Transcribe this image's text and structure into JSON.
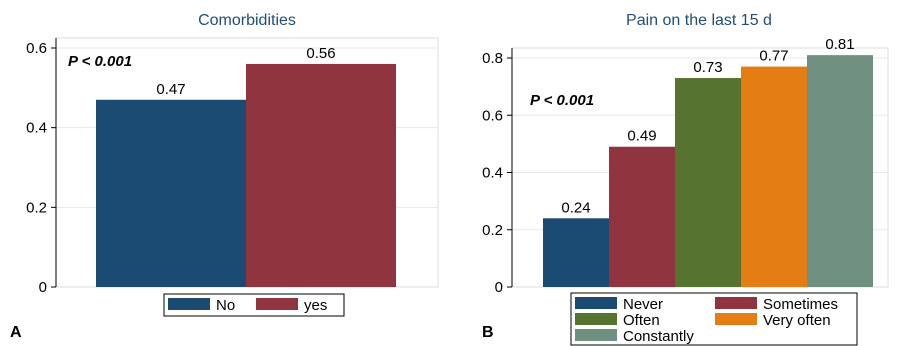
{
  "chart_data": [
    {
      "type": "bar",
      "panel_label": "A",
      "title": "Comorbidities",
      "annotation": "P < 0.001",
      "categories": [
        "No",
        "yes"
      ],
      "values": [
        0.47,
        0.56
      ],
      "value_labels": [
        "0.47",
        "0.56"
      ],
      "colors": [
        "#1b4a72",
        "#903540"
      ],
      "ylim": [
        0,
        0.6
      ],
      "yticks": [
        0,
        0.2,
        0.4,
        0.6
      ],
      "ytick_labels": [
        "0",
        "0.2",
        "0.4",
        "0.6"
      ],
      "grid": true,
      "legend_position": "bottom"
    },
    {
      "type": "bar",
      "panel_label": "B",
      "title": "Pain on the last 15 d",
      "annotation": "P < 0.001",
      "categories": [
        "Never",
        "Sometimes",
        "Often",
        "Very often",
        "Constantly"
      ],
      "values": [
        0.24,
        0.49,
        0.73,
        0.77,
        0.81
      ],
      "value_labels": [
        "0.24",
        "0.49",
        "0.73",
        "0.77",
        "0.81"
      ],
      "colors": [
        "#1b4a72",
        "#903540",
        "#567330",
        "#e47d13",
        "#6f8f80"
      ],
      "ylim": [
        0,
        0.8
      ],
      "yticks": [
        0,
        0.2,
        0.4,
        0.6,
        0.8
      ],
      "ytick_labels": [
        "0",
        "0.2",
        "0.4",
        "0.6",
        "0.8"
      ],
      "grid": true,
      "legend_position": "bottom"
    }
  ]
}
